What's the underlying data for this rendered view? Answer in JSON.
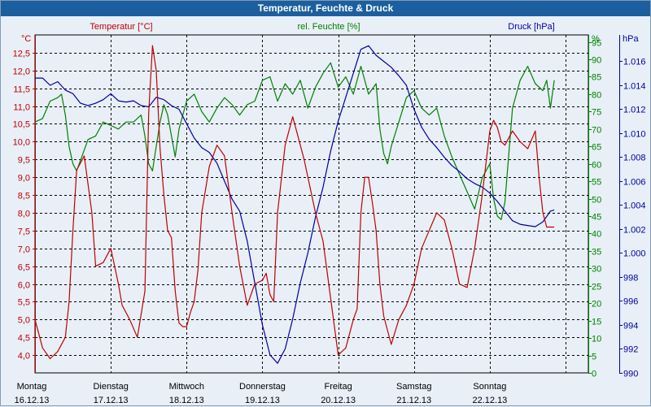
{
  "title": "Temperatur, Feuchte & Druck",
  "colors": {
    "temperature": "#c00000",
    "humidity": "#008000",
    "pressure": "#0000a0",
    "grid": "#000000",
    "titlebar": "#1c5f9e"
  },
  "chart_data": {
    "type": "line",
    "title": "Temperatur, Feuchte & Druck",
    "grid": true,
    "x_labels": [
      {
        "day": "Montag",
        "date": "16.12.13"
      },
      {
        "day": "Dienstag",
        "date": "17.12.13"
      },
      {
        "day": "Mittwoch",
        "date": "18.12.13"
      },
      {
        "day": "Donnerstag",
        "date": "19.12.13"
      },
      {
        "day": "Freitag",
        "date": "20.12.13"
      },
      {
        "day": "Samstag",
        "date": "21.12.13"
      },
      {
        "day": "Sonntag",
        "date": "22.12.13"
      }
    ],
    "x_range_days": [
      0,
      7.3
    ],
    "axes": {
      "temperature": {
        "label": "Temperatur [°C]",
        "unit": "°C",
        "min": 3.5,
        "max": 13.0,
        "ticks": [
          "4,0",
          "4,5",
          "5,0",
          "5,5",
          "6,0",
          "6,5",
          "7,0",
          "7,5",
          "8,0",
          "8,5",
          "9,0",
          "9,5",
          "10,0",
          "10,5",
          "11,0",
          "11,5",
          "12,0",
          "12,5"
        ]
      },
      "humidity": {
        "label": "rel. Feuchte [%]",
        "unit": "%",
        "min": 0,
        "max": 97,
        "ticks": [
          "0",
          "5",
          "10",
          "15",
          "20",
          "25",
          "30",
          "35",
          "40",
          "45",
          "50",
          "55",
          "60",
          "65",
          "70",
          "75",
          "80",
          "85",
          "90",
          "95"
        ]
      },
      "pressure": {
        "label": "Druck [hPa]",
        "unit": "hPa",
        "min": 990,
        "max": 1018.2,
        "ticks": [
          "990",
          "992",
          "994",
          "996",
          "998",
          "1.000",
          "1.002",
          "1.004",
          "1.006",
          "1.008",
          "1.010",
          "1.012",
          "1.014",
          "1.016"
        ]
      }
    },
    "series": [
      {
        "name": "Temperatur [°C]",
        "axis": "temperature",
        "x": [
          0,
          0.1,
          0.2,
          0.3,
          0.4,
          0.45,
          0.5,
          0.55,
          0.6,
          0.65,
          0.75,
          0.8,
          0.9,
          1.0,
          1.1,
          1.15,
          1.25,
          1.35,
          1.45,
          1.5,
          1.55,
          1.6,
          1.65,
          1.7,
          1.75,
          1.8,
          1.85,
          1.9,
          1.95,
          2.0,
          2.05,
          2.1,
          2.15,
          2.2,
          2.3,
          2.4,
          2.5,
          2.6,
          2.7,
          2.8,
          2.9,
          3.0,
          3.05,
          3.1,
          3.15,
          3.2,
          3.3,
          3.4,
          3.45,
          3.55,
          3.7,
          3.8,
          3.9,
          4.0,
          4.1,
          4.2,
          4.25,
          4.3,
          4.35,
          4.4,
          4.45,
          4.5,
          4.55,
          4.6,
          4.7,
          4.8,
          4.9,
          5.0,
          5.1,
          5.2,
          5.3,
          5.4,
          5.5,
          5.6,
          5.7,
          5.8,
          5.9,
          6.0,
          6.05,
          6.1,
          6.15,
          6.2,
          6.3,
          6.4,
          6.5,
          6.6,
          6.65,
          6.7,
          6.75,
          6.8,
          6.85
        ],
        "values": [
          5.0,
          4.2,
          3.9,
          4.1,
          4.5,
          5.5,
          7.5,
          9.2,
          9.4,
          9.6,
          8.0,
          6.5,
          6.6,
          7.0,
          6.0,
          5.4,
          5.0,
          4.5,
          5.8,
          10.8,
          12.7,
          12.0,
          9.8,
          8.5,
          7.5,
          7.3,
          5.8,
          4.9,
          4.8,
          4.8,
          5.2,
          5.5,
          6.4,
          8.0,
          9.3,
          9.9,
          9.6,
          8.0,
          6.5,
          5.4,
          6.0,
          6.1,
          6.3,
          5.7,
          5.5,
          8.0,
          9.9,
          10.7,
          10.3,
          9.5,
          8.0,
          7.2,
          5.6,
          4.0,
          4.2,
          5.0,
          5.3,
          8.0,
          9.0,
          9.0,
          8.3,
          7.5,
          6.0,
          5.1,
          4.3,
          5.0,
          5.4,
          6.0,
          7.0,
          7.5,
          8.0,
          7.8,
          7.0,
          6.0,
          5.9,
          7.0,
          8.5,
          10.3,
          10.6,
          10.4,
          10.0,
          9.9,
          10.3,
          10.0,
          9.8,
          10.3,
          9.0,
          8.0,
          7.6,
          7.6,
          7.6
        ]
      },
      {
        "name": "rel. Feuchte [%]",
        "axis": "humidity",
        "x": [
          0,
          0.1,
          0.2,
          0.3,
          0.35,
          0.4,
          0.45,
          0.5,
          0.55,
          0.6,
          0.7,
          0.8,
          0.9,
          1.0,
          1.1,
          1.2,
          1.3,
          1.4,
          1.45,
          1.5,
          1.55,
          1.6,
          1.65,
          1.7,
          1.75,
          1.8,
          1.85,
          1.9,
          2.0,
          2.1,
          2.2,
          2.3,
          2.4,
          2.5,
          2.6,
          2.7,
          2.8,
          2.9,
          3.0,
          3.1,
          3.2,
          3.3,
          3.4,
          3.5,
          3.6,
          3.7,
          3.8,
          3.9,
          4.0,
          4.1,
          4.2,
          4.3,
          4.4,
          4.5,
          4.55,
          4.6,
          4.65,
          4.7,
          4.8,
          4.9,
          5.0,
          5.1,
          5.2,
          5.3,
          5.4,
          5.5,
          5.6,
          5.7,
          5.8,
          5.9,
          6.0,
          6.05,
          6.1,
          6.15,
          6.2,
          6.3,
          6.4,
          6.5,
          6.6,
          6.7,
          6.75,
          6.8,
          6.85
        ],
        "values": [
          72,
          73,
          78,
          79,
          80,
          74,
          65,
          60,
          58,
          61,
          67,
          68,
          72,
          71,
          70,
          72,
          72,
          74,
          68,
          60,
          58,
          65,
          72,
          77,
          74,
          68,
          62,
          70,
          78,
          80,
          75,
          72,
          76,
          79,
          77,
          74,
          77,
          78,
          84,
          85,
          78,
          83,
          80,
          84,
          76,
          82,
          86,
          89,
          82,
          85,
          80,
          88,
          80,
          83,
          70,
          63,
          60,
          65,
          72,
          79,
          81,
          76,
          74,
          76,
          68,
          62,
          57,
          52,
          47,
          56,
          60,
          50,
          45,
          44,
          49,
          76,
          84,
          88,
          83,
          81,
          84,
          76,
          84
        ]
      },
      {
        "name": "Druck [hPa]",
        "axis": "pressure",
        "x": [
          0,
          0.1,
          0.2,
          0.3,
          0.4,
          0.5,
          0.6,
          0.7,
          0.8,
          0.9,
          1.0,
          1.1,
          1.2,
          1.3,
          1.4,
          1.5,
          1.6,
          1.7,
          1.8,
          1.9,
          2.0,
          2.1,
          2.2,
          2.3,
          2.4,
          2.5,
          2.6,
          2.7,
          2.8,
          2.9,
          3.0,
          3.1,
          3.2,
          3.3,
          3.4,
          3.5,
          3.6,
          3.7,
          3.8,
          3.9,
          4.0,
          4.1,
          4.2,
          4.3,
          4.4,
          4.5,
          4.6,
          4.7,
          4.8,
          4.9,
          5.0,
          5.1,
          5.2,
          5.3,
          5.4,
          5.5,
          5.6,
          5.7,
          5.8,
          5.9,
          6.0,
          6.1,
          6.2,
          6.3,
          6.4,
          6.5,
          6.6,
          6.7,
          6.8,
          6.85
        ],
        "values": [
          1014.6,
          1014.6,
          1014.0,
          1014.3,
          1013.6,
          1013.3,
          1012.5,
          1012.3,
          1012.5,
          1012.8,
          1013.3,
          1012.7,
          1012.6,
          1012.7,
          1012.3,
          1012.2,
          1013.0,
          1012.8,
          1012.3,
          1012.0,
          1010.8,
          1009.6,
          1008.8,
          1008.4,
          1007.5,
          1006.0,
          1004.5,
          1003.5,
          1001.0,
          997.5,
          994.0,
          991.5,
          990.8,
          992.0,
          994.5,
          997.5,
          1000.0,
          1003.0,
          1005.5,
          1008.5,
          1011.0,
          1013.0,
          1015.0,
          1017.0,
          1017.3,
          1016.5,
          1016.0,
          1015.5,
          1014.8,
          1014.0,
          1012.0,
          1010.5,
          1009.5,
          1008.8,
          1008.0,
          1007.3,
          1006.8,
          1006.2,
          1005.8,
          1005.5,
          1005.0,
          1004.3,
          1003.5,
          1002.7,
          1002.4,
          1002.3,
          1002.2,
          1002.6,
          1003.5,
          1003.6
        ]
      }
    ]
  }
}
